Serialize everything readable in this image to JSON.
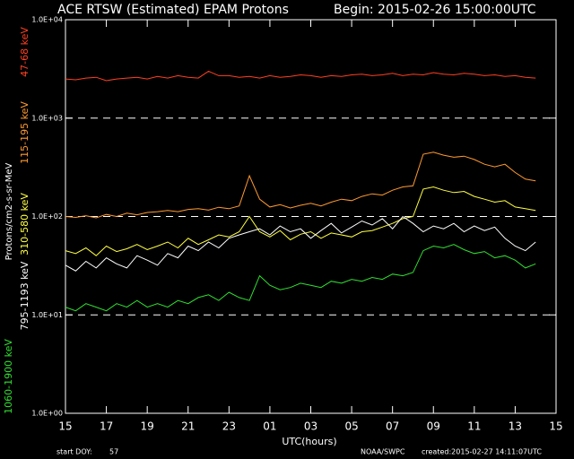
{
  "chart_data": {
    "type": "line",
    "title": "ACE RTSW (Estimated) EPAM Protons",
    "subtitle": "Begin: 2015-02-26 15:00:00UTC",
    "y_label": "Protons/cm2-s-sr-MeV",
    "x_label": "UTC(hours)",
    "footer": {
      "doy_label": "start DOY:",
      "doy": "57",
      "source": "NOAA/SWPC",
      "created": "created:2015-02-27 14:11:07UTC"
    },
    "log_y": true,
    "grid": true,
    "ylim": [
      1,
      10000
    ],
    "yticks": [
      {
        "value": 1,
        "label": "1.0E+00"
      },
      {
        "value": 10,
        "label": "1.0E+01"
      },
      {
        "value": 100,
        "label": "1.0E+02"
      },
      {
        "value": 1000,
        "label": "1.0E+03"
      },
      {
        "value": 10000,
        "label": "1.0E+04"
      }
    ],
    "xlim": [
      0,
      24
    ],
    "xticks": [
      {
        "value": 0,
        "label": "15"
      },
      {
        "value": 2,
        "label": "17"
      },
      {
        "value": 4,
        "label": "19"
      },
      {
        "value": 6,
        "label": "21"
      },
      {
        "value": 8,
        "label": "23"
      },
      {
        "value": 10,
        "label": "01"
      },
      {
        "value": 12,
        "label": "03"
      },
      {
        "value": 14,
        "label": "05"
      },
      {
        "value": 16,
        "label": "07"
      },
      {
        "value": 18,
        "label": "09"
      },
      {
        "value": 20,
        "label": "11"
      },
      {
        "value": 22,
        "label": "13"
      },
      {
        "value": 24,
        "label": "15"
      }
    ],
    "x": [
      0,
      0.5,
      1,
      1.5,
      2,
      2.5,
      3,
      3.5,
      4,
      4.5,
      5,
      5.5,
      6,
      6.5,
      7,
      7.5,
      8,
      8.5,
      9,
      9.5,
      10,
      10.5,
      11,
      11.5,
      12,
      12.5,
      13,
      13.5,
      14,
      14.5,
      15,
      15.5,
      16,
      16.5,
      17,
      17.5,
      18,
      18.5,
      19,
      19.5,
      20,
      20.5,
      21,
      21.5,
      22,
      22.5,
      23
    ],
    "series": [
      {
        "name": "47-68 keV",
        "color": "#ff4020",
        "values": [
          2500,
          2450,
          2550,
          2600,
          2400,
          2500,
          2550,
          2600,
          2500,
          2650,
          2550,
          2700,
          2600,
          2550,
          3000,
          2700,
          2700,
          2600,
          2650,
          2550,
          2700,
          2600,
          2650,
          2750,
          2700,
          2600,
          2700,
          2650,
          2750,
          2800,
          2700,
          2750,
          2850,
          2700,
          2800,
          2750,
          2900,
          2800,
          2750,
          2850,
          2800,
          2700,
          2750,
          2650,
          2700,
          2600,
          2550
        ]
      },
      {
        "name": "115-195 keV",
        "color": "#ff9a30",
        "values": [
          100,
          98,
          102,
          97,
          105,
          100,
          108,
          104,
          110,
          112,
          115,
          112,
          118,
          120,
          116,
          124,
          120,
          128,
          260,
          150,
          125,
          132,
          122,
          130,
          136,
          128,
          140,
          150,
          145,
          160,
          170,
          165,
          185,
          200,
          205,
          430,
          450,
          420,
          400,
          410,
          380,
          340,
          320,
          340,
          280,
          240,
          230
        ]
      },
      {
        "name": "310-580 keV",
        "color": "#ffff40",
        "values": [
          45,
          42,
          48,
          40,
          50,
          44,
          47,
          52,
          46,
          50,
          55,
          48,
          60,
          52,
          58,
          65,
          62,
          70,
          100,
          70,
          62,
          72,
          58,
          66,
          70,
          60,
          68,
          65,
          62,
          70,
          72,
          78,
          85,
          95,
          100,
          190,
          200,
          185,
          175,
          180,
          160,
          150,
          140,
          145,
          125,
          120,
          115
        ]
      },
      {
        "name": "795-1193 keV",
        "color": "#ffffff",
        "values": [
          32,
          28,
          35,
          30,
          38,
          33,
          30,
          40,
          36,
          32,
          42,
          38,
          50,
          45,
          55,
          48,
          60,
          65,
          70,
          75,
          65,
          80,
          70,
          75,
          60,
          72,
          85,
          68,
          78,
          90,
          82,
          95,
          75,
          100,
          85,
          70,
          80,
          75,
          85,
          70,
          80,
          72,
          78,
          60,
          50,
          45,
          55
        ]
      },
      {
        "name": "1060-1900 keV",
        "color": "#30e030",
        "values": [
          12,
          11,
          13,
          12,
          11,
          13,
          12,
          14,
          12,
          13,
          12,
          14,
          13,
          15,
          16,
          14,
          17,
          15,
          14,
          25,
          20,
          18,
          19,
          21,
          20,
          19,
          22,
          21,
          23,
          22,
          24,
          23,
          26,
          25,
          27,
          45,
          50,
          48,
          52,
          46,
          42,
          44,
          38,
          40,
          36,
          30,
          33
        ]
      }
    ]
  }
}
